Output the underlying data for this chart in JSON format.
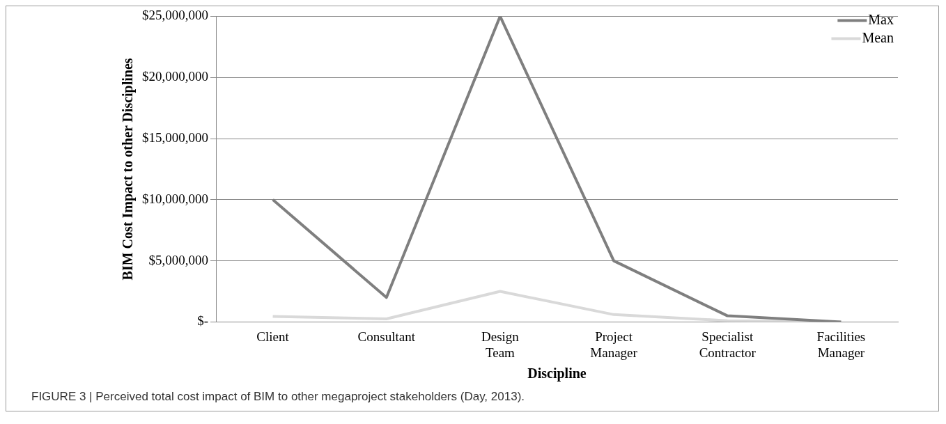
{
  "chart_data": {
    "type": "line",
    "xlabel": "Discipline",
    "ylabel": "BIM Cost Impact to other Disciplines",
    "categories": [
      "Client",
      "Consultant",
      "Design Team",
      "Project Manager",
      "Specialist Contractor",
      "Facilities Manager"
    ],
    "series": [
      {
        "name": "Max",
        "color": "#7f7f7f",
        "values": [
          10000000,
          2000000,
          25000000,
          5000000,
          500000,
          0
        ]
      },
      {
        "name": "Mean",
        "color": "#d9d9d9",
        "values": [
          450000,
          250000,
          2500000,
          600000,
          100000,
          0
        ]
      }
    ],
    "ylim": [
      0,
      25000000
    ],
    "yticks": [
      {
        "value": 0,
        "label": "$-"
      },
      {
        "value": 5000000,
        "label": "$5,000,000"
      },
      {
        "value": 10000000,
        "label": "$10,000,000"
      },
      {
        "value": 15000000,
        "label": "$15,000,000"
      },
      {
        "value": 20000000,
        "label": "$20,000,000"
      },
      {
        "value": 25000000,
        "label": "$25,000,000"
      }
    ],
    "grid": "y",
    "legend": "top right",
    "marker": "none",
    "line_style": "solid",
    "annotations": [
      "FIGURE 3 | Perceived total cost impact of BIM to other megaproject stakeholders (Day, 2013)."
    ]
  }
}
